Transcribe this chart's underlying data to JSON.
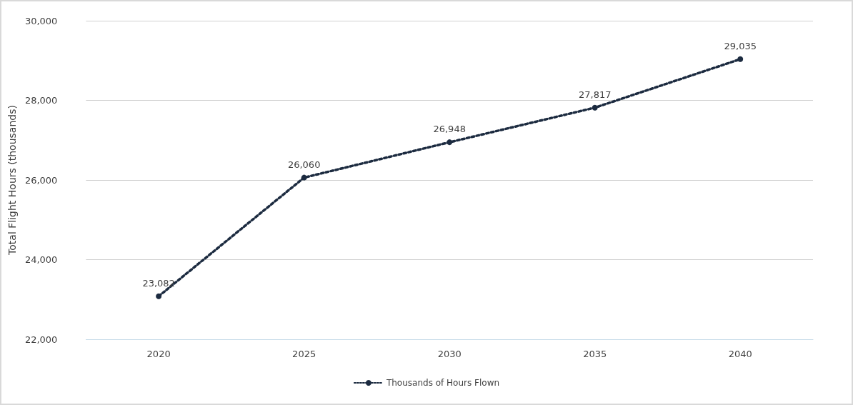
{
  "chart_data": {
    "type": "line",
    "ylabel": "Total Flight Hours (thousands)",
    "categories": [
      "2020",
      "2025",
      "2030",
      "2035",
      "2040"
    ],
    "series": [
      {
        "name": "Thousands of Hours Flown",
        "color": "#1c2b40",
        "values": [
          23082,
          26060,
          26948,
          27817,
          29035
        ],
        "value_labels": [
          "23,082",
          "26,060",
          "26,948",
          "27,817",
          "29,035"
        ]
      }
    ],
    "ylim": [
      22000,
      30000
    ],
    "yticks": [
      {
        "value": 22000,
        "label": "22,000"
      },
      {
        "value": 24000,
        "label": "24,000"
      },
      {
        "value": 26000,
        "label": "26,000"
      },
      {
        "value": 28000,
        "label": "28,000"
      },
      {
        "value": 30000,
        "label": "30,000"
      }
    ],
    "grid": "y",
    "legend": "bottom",
    "marker": "circle",
    "line_style": "dotted"
  }
}
